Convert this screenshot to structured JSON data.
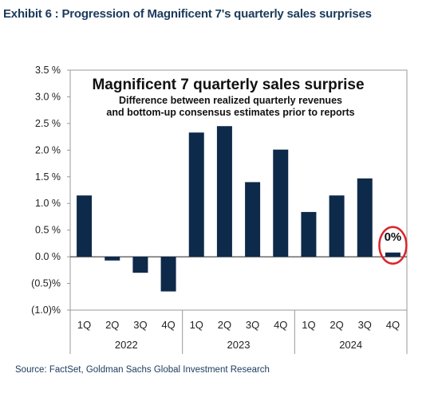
{
  "exhibit_title": "Exhibit 6 : Progression of Magnificent 7's quarterly sales surprises",
  "source": "Source: FactSet, Goldman Sachs Global Investment Research",
  "chart_data": {
    "type": "bar",
    "title": "Magnificent 7 quarterly sales surprise",
    "subtitle_lines": [
      "Difference between realized quarterly revenues",
      "and bottom-up  consensus  estimates  prior to reports"
    ],
    "categories": [
      "1Q",
      "2Q",
      "3Q",
      "4Q",
      "1Q",
      "2Q",
      "3Q",
      "4Q",
      "1Q",
      "2Q",
      "3Q",
      "4Q"
    ],
    "groups": [
      {
        "label": "2022",
        "count": 4
      },
      {
        "label": "2023",
        "count": 4
      },
      {
        "label": "2024",
        "count": 4
      }
    ],
    "values": [
      1.15,
      -0.07,
      -0.3,
      -0.65,
      2.33,
      2.45,
      1.4,
      2.01,
      0.84,
      1.15,
      1.47,
      0.08
    ],
    "ylim": [
      -1.0,
      3.5
    ],
    "yticks": [
      3.5,
      3.0,
      2.5,
      2.0,
      1.5,
      1.0,
      0.5,
      0.0,
      -0.5,
      -1.0
    ],
    "ytick_labels": [
      "3.5 %",
      "3.0 %",
      "2.5 %",
      "2.0 %",
      "1.5 %",
      "1.0 %",
      "0.5 %",
      "0.0 %",
      "(0.5)%",
      "(1.0)%"
    ],
    "annotation": {
      "text": "0%",
      "target_index": 11
    },
    "bar_color": "#0e2a4a",
    "highlight_color": "#d9262c",
    "grid": false
  }
}
